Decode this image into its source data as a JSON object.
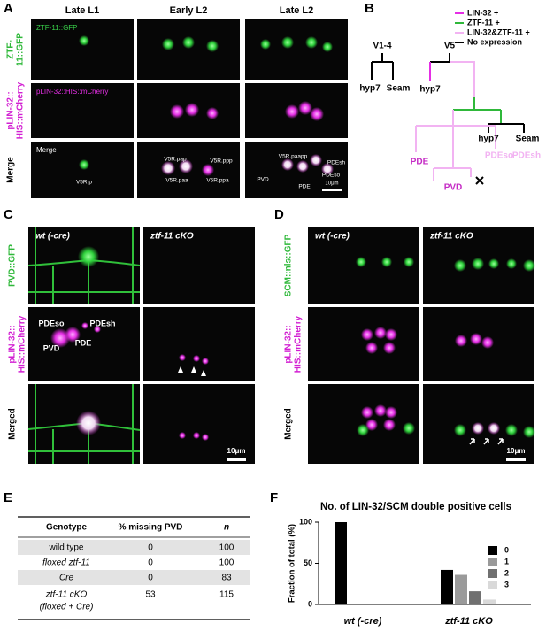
{
  "panel_labels": {
    "a": "A",
    "b": "B",
    "c": "C",
    "d": "D",
    "e": "E",
    "f": "F"
  },
  "panel_a": {
    "columns": [
      "Late L1",
      "Early L2",
      "Late L2"
    ],
    "row_labels": [
      [
        "ZTF-",
        "11::GFP"
      ],
      [
        "pLIN-32::",
        "HIS::mCherry"
      ],
      [
        "Merge"
      ]
    ],
    "inset_labels": [
      "ZTF-11::GFP",
      "pLIN-32::HIS::mCherry",
      "Merge"
    ],
    "cell_labels": [
      "V5R.p",
      "V5R.pap",
      "V5R.ppp",
      "V5R.paa",
      "V5R.ppa",
      "V5R.paapp",
      "PDEsh",
      "PDEso",
      "PVD",
      "PDE"
    ],
    "scale_bar": "10μm"
  },
  "panel_b": {
    "legend": [
      "LIN-32 +",
      "ZTF-11 +",
      "LIN-32&ZTF-11 +",
      "No expression"
    ],
    "nodes": [
      "V1-4",
      "V5",
      "hyp7",
      "Seam",
      "hyp7",
      "hyp7",
      "Seam",
      "PDE",
      "PVD",
      "PDEso",
      "PDEsh"
    ]
  },
  "panel_c": {
    "columns": [
      "wt (-cre)",
      "ztf-11 cKO"
    ],
    "row_labels": [
      [
        "PVD::GFP"
      ],
      [
        "pLIN-32::",
        "HIS::mCherry"
      ],
      [
        "Merged"
      ]
    ],
    "cell_labels": [
      "PDEso",
      "PDEsh",
      "PDE",
      "PVD"
    ],
    "scale_bar": "10μm"
  },
  "panel_d": {
    "columns": [
      "wt (-cre)",
      "ztf-11 cKO"
    ],
    "row_labels": [
      [
        "SCM::nls::GFP"
      ],
      [
        "pLIN-32::",
        "HIS::mCherry"
      ],
      [
        "Merged"
      ]
    ],
    "scale_bar": "10μm"
  },
  "table": {
    "header": [
      "Genotype",
      "% missing PVD",
      "n"
    ],
    "rows": [
      [
        "wild type",
        0,
        100
      ],
      [
        "floxed ztf-11",
        0,
        100
      ],
      [
        "Cre",
        0,
        83
      ],
      [
        "ztf-11 cKO",
        53,
        115
      ]
    ],
    "last_row_note": "(floxed + Cre)"
  },
  "chart_data": {
    "type": "bar",
    "title": "No. of LIN-32/SCM double positive cells",
    "y_label": "Fraction of total (%)",
    "categories": [
      "wt (-cre)",
      "ztf-11 cKO"
    ],
    "series": [
      {
        "name": "0",
        "color": "#000000",
        "values": [
          100,
          42
        ]
      },
      {
        "name": "1",
        "color": "#9a9a9a",
        "values": [
          0,
          36
        ]
      },
      {
        "name": "2",
        "color": "#707070",
        "values": [
          0,
          16
        ]
      },
      {
        "name": "3",
        "color": "#d9d9d9",
        "values": [
          0,
          6
        ]
      }
    ],
    "ylim": [
      0,
      100
    ],
    "yticks": [
      0,
      50,
      100
    ],
    "grid": false
  }
}
